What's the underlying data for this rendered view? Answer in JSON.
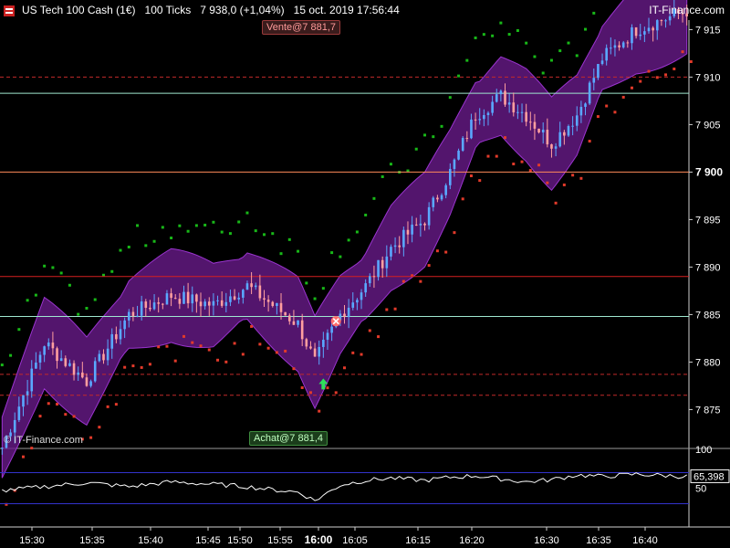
{
  "header": {
    "instrument": "US Tech 100 Cash (1€)",
    "period": "100 Ticks",
    "quote": "7 938,0 (+1,04%)",
    "datetime": "15 oct. 2019 17:56:44",
    "brand": "IT-Finance.com"
  },
  "watermark": "© IT-Finance.com",
  "flags": {
    "sell": "Vente@7 881,7",
    "buy": "Achat@7 881,4"
  },
  "colors": {
    "background": "#000000",
    "candle_up": "#5aa8ff",
    "candle_down": "#ff9f9f",
    "band_fill": "#6a1b8c",
    "dots_green": "#18b818",
    "dots_red": "#e23a2a",
    "rsi_line": "#ffffff",
    "rsi_levels": "#3333cc"
  },
  "chart_data": [
    {
      "type": "candlestick",
      "title": "",
      "y_range": [
        7871,
        7916
      ],
      "y_ticks": [
        "7 875",
        "7 880",
        "7 885",
        "7 890",
        "7 895",
        "7 900",
        "7 905",
        "7 910",
        "7 915"
      ],
      "y_ticks_bold": [
        "7 900"
      ],
      "x_ticks": [
        "15:30",
        "15:35",
        "15:40",
        "15:45",
        "15:50",
        "15:55",
        "16:00",
        "16:05",
        "16:15",
        "16:20",
        "16:30",
        "16:35",
        "16:40"
      ],
      "x_ticks_bold": [
        "16:00"
      ],
      "price_path": [
        [
          0,
          7871
        ],
        [
          10,
          7882
        ],
        [
          20,
          7878
        ],
        [
          30,
          7885
        ],
        [
          40,
          7887
        ],
        [
          50,
          7886
        ],
        [
          58,
          7888
        ],
        [
          64,
          7886
        ],
        [
          70,
          7884
        ],
        [
          74,
          7880
        ],
        [
          80,
          7885
        ],
        [
          86,
          7888
        ],
        [
          92,
          7892
        ],
        [
          100,
          7895
        ],
        [
          106,
          7900
        ],
        [
          112,
          7906
        ],
        [
          118,
          7908
        ],
        [
          124,
          7906
        ],
        [
          130,
          7903
        ],
        [
          136,
          7906
        ],
        [
          142,
          7912
        ],
        [
          150,
          7915
        ],
        [
          162,
          7917
        ]
      ],
      "horizontal_lines": [
        {
          "value": 7910.0,
          "style": "dashed",
          "color": "#c22a2a"
        },
        {
          "value": 7908.3,
          "style": "solid",
          "color": "#9fe8d0"
        },
        {
          "value": 7900.0,
          "style": "solid",
          "color": "#ff8a5a"
        },
        {
          "value": 7889.0,
          "style": "solid",
          "color": "#d62020"
        },
        {
          "value": 7884.8,
          "style": "solid",
          "color": "#9fe8d0"
        },
        {
          "value": 7878.7,
          "style": "dashed",
          "color": "#c22a2a"
        },
        {
          "value": 7876.5,
          "style": "dashed",
          "color": "#c22a2a"
        }
      ],
      "sell_marker": {
        "bar": 79,
        "value": 7884.3
      },
      "buy_marker": {
        "bar": 76,
        "value": 7877.6
      }
    },
    {
      "type": "line",
      "title": "",
      "y_range": [
        0,
        100
      ],
      "y_ticks": [
        "100",
        "50"
      ],
      "levels": [
        70,
        30
      ],
      "last_value": "65,398",
      "path": [
        [
          0,
          47
        ],
        [
          10,
          52
        ],
        [
          20,
          57
        ],
        [
          30,
          52
        ],
        [
          40,
          58
        ],
        [
          50,
          55
        ],
        [
          58,
          52
        ],
        [
          64,
          48
        ],
        [
          70,
          45
        ],
        [
          74,
          34
        ],
        [
          80,
          54
        ],
        [
          86,
          60
        ],
        [
          92,
          63
        ],
        [
          100,
          60
        ],
        [
          106,
          64
        ],
        [
          112,
          66
        ],
        [
          118,
          62
        ],
        [
          124,
          58
        ],
        [
          130,
          61
        ],
        [
          136,
          67
        ],
        [
          142,
          65
        ],
        [
          150,
          68
        ],
        [
          162,
          65
        ]
      ]
    }
  ]
}
